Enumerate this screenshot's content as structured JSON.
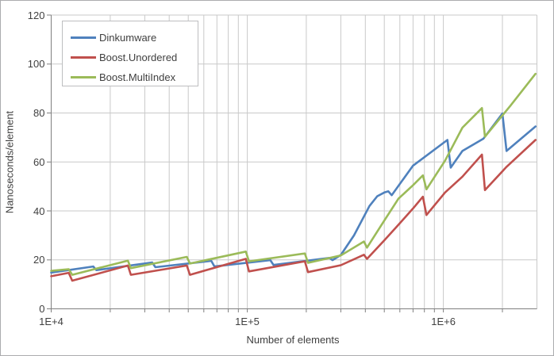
{
  "chart_data": {
    "type": "line",
    "title": "",
    "xlabel": "Number of elements",
    "ylabel": "Nanoseconds/element",
    "x_scale": "log",
    "x_range": [
      10000,
      3000000
    ],
    "y_range": [
      0,
      120
    ],
    "grid": true,
    "legend_position": "top-left",
    "y_ticks": [
      0,
      20,
      40,
      60,
      80,
      100,
      120
    ],
    "x_major_ticks": [
      {
        "value": 10000,
        "label": "1E+4"
      },
      {
        "value": 100000,
        "label": "1E+5"
      },
      {
        "value": 1000000,
        "label": "1E+6"
      }
    ],
    "x_minor_ticks": [
      20000,
      30000,
      40000,
      50000,
      60000,
      70000,
      80000,
      90000,
      200000,
      300000,
      400000,
      500000,
      600000,
      700000,
      800000,
      900000,
      2000000
    ],
    "series": [
      {
        "name": "Dinkumware",
        "color": "#4f81bd",
        "points": [
          [
            10000,
            14.8
          ],
          [
            16384,
            17.3
          ],
          [
            17000,
            15.8
          ],
          [
            32768,
            18.9
          ],
          [
            34000,
            17.0
          ],
          [
            65536,
            19.6
          ],
          [
            68000,
            17.3
          ],
          [
            131072,
            19.9
          ],
          [
            136000,
            17.9
          ],
          [
            262144,
            20.8
          ],
          [
            272000,
            19.9
          ],
          [
            300000,
            22.0
          ],
          [
            350000,
            30.0
          ],
          [
            420000,
            42.0
          ],
          [
            460000,
            46.0
          ],
          [
            500000,
            47.5
          ],
          [
            524288,
            48.0
          ],
          [
            545000,
            46.4
          ],
          [
            700000,
            58.5
          ],
          [
            1048576,
            69.0
          ],
          [
            1090000,
            57.7
          ],
          [
            1250000,
            64.5
          ],
          [
            1600000,
            69.5
          ],
          [
            2000000,
            79.8
          ],
          [
            2100000,
            64.5
          ],
          [
            2950000,
            74.5
          ]
        ]
      },
      {
        "name": "Boost.Unordered",
        "color": "#c0504d",
        "points": [
          [
            10000,
            13.3
          ],
          [
            12289,
            14.7
          ],
          [
            12800,
            11.5
          ],
          [
            24593,
            17.7
          ],
          [
            25500,
            13.9
          ],
          [
            49157,
            17.7
          ],
          [
            51000,
            13.9
          ],
          [
            98317,
            20.4
          ],
          [
            102000,
            15.3
          ],
          [
            196613,
            19.4
          ],
          [
            204000,
            15.0
          ],
          [
            300000,
            17.8
          ],
          [
            393241,
            22.1
          ],
          [
            408000,
            20.4
          ],
          [
            500000,
            28.0
          ],
          [
            585000,
            34.0
          ],
          [
            700000,
            41.0
          ],
          [
            786433,
            45.8
          ],
          [
            820000,
            38.3
          ],
          [
            1020000,
            47.5
          ],
          [
            1250000,
            54.0
          ],
          [
            1572869,
            63.0
          ],
          [
            1630000,
            48.5
          ],
          [
            2100000,
            58.0
          ],
          [
            2950000,
            69.0
          ]
        ]
      },
      {
        "name": "Boost.MultiIndex",
        "color": "#9bbb59",
        "points": [
          [
            10000,
            15.5
          ],
          [
            12289,
            16.2
          ],
          [
            12800,
            13.9
          ],
          [
            24593,
            19.7
          ],
          [
            25500,
            16.6
          ],
          [
            49157,
            21.2
          ],
          [
            51000,
            18.5
          ],
          [
            98317,
            23.4
          ],
          [
            102000,
            19.4
          ],
          [
            196613,
            22.6
          ],
          [
            204000,
            18.8
          ],
          [
            300000,
            21.8
          ],
          [
            393241,
            27.5
          ],
          [
            408000,
            25.0
          ],
          [
            490000,
            35.0
          ],
          [
            590000,
            45.0
          ],
          [
            700000,
            50.5
          ],
          [
            786433,
            54.5
          ],
          [
            820000,
            48.8
          ],
          [
            1020000,
            60.5
          ],
          [
            1250000,
            74.0
          ],
          [
            1572869,
            82.0
          ],
          [
            1630000,
            70.3
          ],
          [
            2200000,
            83.0
          ],
          [
            2950000,
            96.0
          ]
        ]
      }
    ]
  },
  "colors": {
    "axis_line": "#7f7f7f",
    "grid_line": "#c9c9c9",
    "plot_border": "#c9c9c9",
    "tick_text": "#3f3f3f"
  }
}
